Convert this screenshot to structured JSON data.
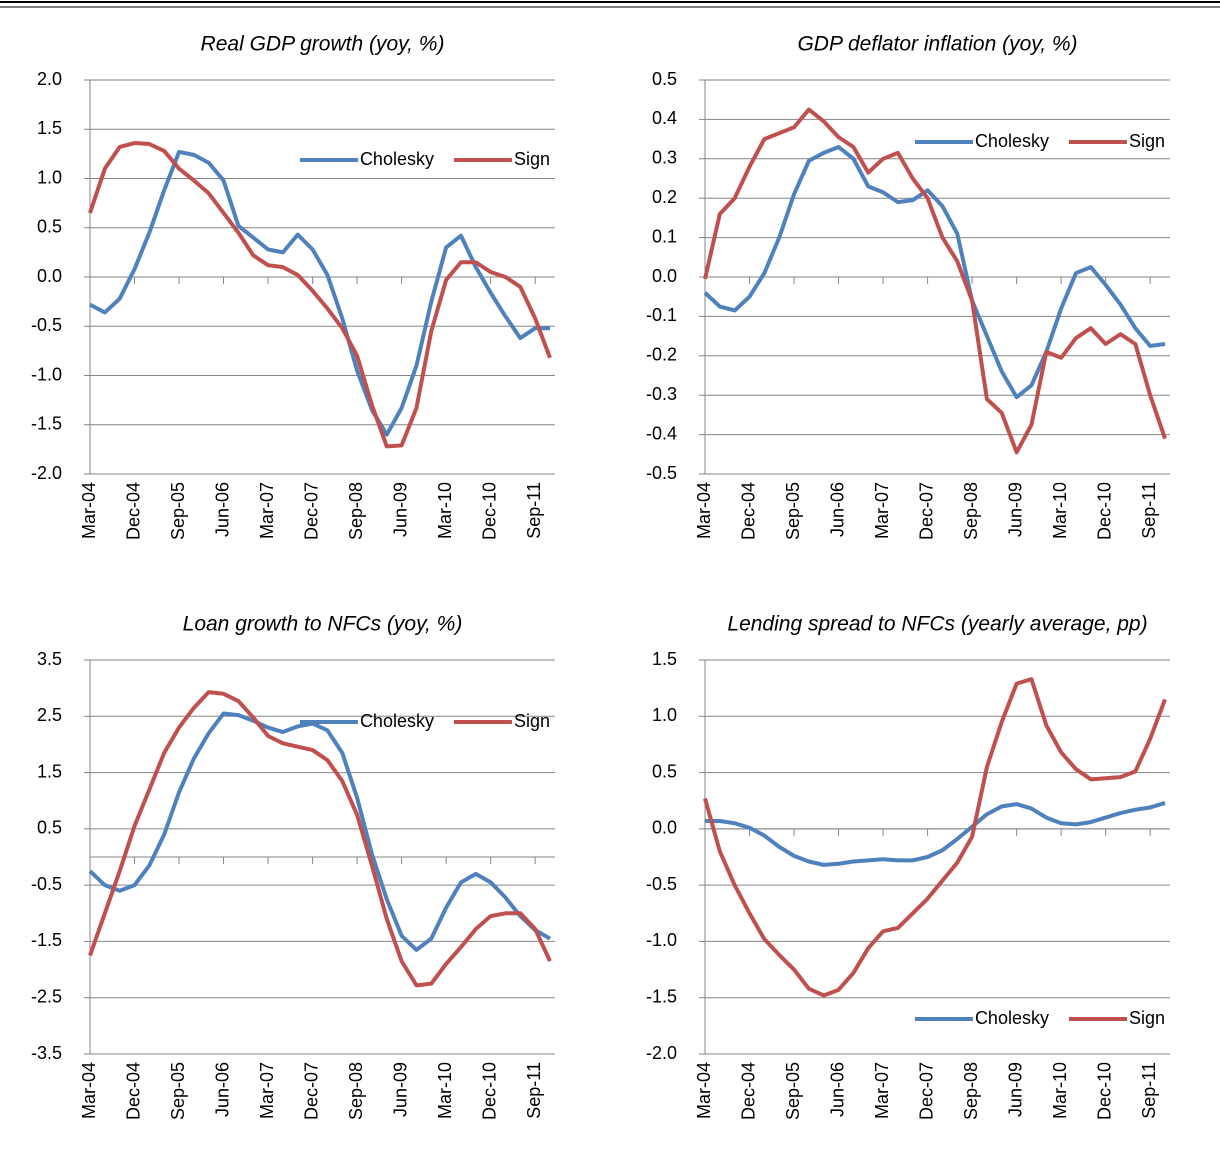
{
  "chart_data": [
    {
      "type": "line",
      "title": "Real GDP growth (yoy, %)",
      "categories": [
        "Mar-04",
        null,
        null,
        "Dec-04",
        null,
        null,
        "Sep-05",
        null,
        null,
        "Jun-06",
        null,
        null,
        "Mar-07",
        null,
        null,
        "Dec-07",
        null,
        null,
        "Sep-08",
        null,
        null,
        "Jun-09",
        null,
        null,
        "Mar-10",
        null,
        null,
        "Dec-10",
        null,
        null,
        "Sep-11",
        null
      ],
      "series": [
        {
          "name": "Cholesky",
          "color": "#4f81bd",
          "values": [
            -0.28,
            -0.36,
            -0.22,
            0.08,
            0.45,
            0.88,
            1.27,
            1.24,
            1.16,
            0.98,
            0.52,
            0.4,
            0.28,
            0.25,
            0.43,
            0.28,
            0.02,
            -0.42,
            -0.95,
            -1.35,
            -1.6,
            -1.33,
            -0.9,
            -0.25,
            0.3,
            0.42,
            0.1,
            -0.16,
            -0.4,
            -0.62,
            -0.52,
            -0.52
          ]
        },
        {
          "name": "Sign",
          "color": "#c0504d",
          "values": [
            0.65,
            1.1,
            1.32,
            1.36,
            1.35,
            1.28,
            1.1,
            0.98,
            0.85,
            0.65,
            0.45,
            0.22,
            0.12,
            0.1,
            0.02,
            -0.14,
            -0.32,
            -0.52,
            -0.8,
            -1.3,
            -1.72,
            -1.71,
            -1.33,
            -0.55,
            -0.03,
            0.15,
            0.15,
            0.05,
            0.0,
            -0.1,
            -0.42,
            -0.82
          ]
        }
      ],
      "ylim": [
        -2,
        2
      ],
      "yticks": [
        {
          "value": -2,
          "label": "-2.0"
        },
        -1.5,
        {
          "value": -1,
          "label": "-1.0"
        },
        -0.5,
        {
          "value": 0,
          "label": "0.0"
        },
        0.5,
        {
          "value": 1,
          "label": "1.0"
        },
        1.5,
        {
          "value": 2,
          "label": "2.0"
        }
      ],
      "grid": true,
      "legend_position": "top-right"
    },
    {
      "type": "line",
      "title": "GDP deflator inflation (yoy, %)",
      "categories": [
        "Mar-04",
        null,
        null,
        "Dec-04",
        null,
        null,
        "Sep-05",
        null,
        null,
        "Jun-06",
        null,
        null,
        "Mar-07",
        null,
        null,
        "Dec-07",
        null,
        null,
        "Sep-08",
        null,
        null,
        "Jun-09",
        null,
        null,
        "Mar-10",
        null,
        null,
        "Dec-10",
        null,
        null,
        "Sep-11",
        null
      ],
      "series": [
        {
          "name": "Cholesky",
          "color": "#4f81bd",
          "values": [
            -0.04,
            -0.075,
            -0.085,
            -0.05,
            0.01,
            0.1,
            0.21,
            0.295,
            0.315,
            0.33,
            0.3,
            0.23,
            0.215,
            0.19,
            0.195,
            0.22,
            0.18,
            0.11,
            -0.06,
            -0.15,
            -0.24,
            -0.305,
            -0.275,
            -0.19,
            -0.08,
            0.01,
            0.025,
            -0.02,
            -0.07,
            -0.13,
            -0.175,
            -0.17
          ]
        },
        {
          "name": "Sign",
          "color": "#c0504d",
          "values": [
            -0.005,
            0.16,
            0.2,
            0.28,
            0.35,
            0.365,
            0.38,
            0.425,
            0.395,
            0.355,
            0.33,
            0.265,
            0.3,
            0.315,
            0.25,
            0.2,
            0.1,
            0.04,
            -0.06,
            -0.31,
            -0.345,
            -0.445,
            -0.375,
            -0.19,
            -0.205,
            -0.155,
            -0.13,
            -0.17,
            -0.145,
            -0.17,
            -0.3,
            -0.41
          ]
        }
      ],
      "ylim": [
        -0.5,
        0.5
      ],
      "yticks": [
        -0.5,
        -0.4,
        -0.3,
        -0.2,
        -0.1,
        {
          "value": 0,
          "label": "0.0"
        },
        0.1,
        0.2,
        0.3,
        0.4,
        0.5
      ],
      "grid": true,
      "legend_position": "top-right"
    },
    {
      "type": "line",
      "title": "Loan growth to NFCs (yoy, %)",
      "categories": [
        "Mar-04",
        null,
        null,
        "Dec-04",
        null,
        null,
        "Sep-05",
        null,
        null,
        "Jun-06",
        null,
        null,
        "Mar-07",
        null,
        null,
        "Dec-07",
        null,
        null,
        "Sep-08",
        null,
        null,
        "Jun-09",
        null,
        null,
        "Mar-10",
        null,
        null,
        "Dec-10",
        null,
        null,
        "Sep-11",
        null
      ],
      "series": [
        {
          "name": "Cholesky",
          "color": "#4f81bd",
          "values": [
            -0.25,
            -0.5,
            -0.6,
            -0.5,
            -0.15,
            0.4,
            1.15,
            1.75,
            2.2,
            2.55,
            2.52,
            2.42,
            2.3,
            2.22,
            2.32,
            2.37,
            2.25,
            1.85,
            1.05,
            0.05,
            -0.75,
            -1.4,
            -1.65,
            -1.45,
            -0.9,
            -0.45,
            -0.3,
            -0.45,
            -0.72,
            -1.05,
            -1.3,
            -1.45
          ]
        },
        {
          "name": "Sign",
          "color": "#c0504d",
          "values": [
            -1.75,
            -1.0,
            -0.25,
            0.55,
            1.2,
            1.85,
            2.3,
            2.65,
            2.93,
            2.9,
            2.77,
            2.48,
            2.15,
            2.02,
            1.96,
            1.9,
            1.72,
            1.35,
            0.75,
            -0.15,
            -1.1,
            -1.85,
            -2.28,
            -2.25,
            -1.9,
            -1.6,
            -1.28,
            -1.05,
            -1.0,
            -1.0,
            -1.28,
            -1.85
          ]
        }
      ],
      "ylim": [
        -3.5,
        3.5
      ],
      "yticks": [
        -3.5,
        -2.5,
        -1.5,
        -0.5,
        0.5,
        1.5,
        2.5,
        3.5
      ],
      "grid": true,
      "legend_position": "top-right"
    },
    {
      "type": "line",
      "title": "Lending spread to NFCs (yearly average, pp)",
      "categories": [
        "Mar-04",
        null,
        null,
        "Dec-04",
        null,
        null,
        "Sep-05",
        null,
        null,
        "Jun-06",
        null,
        null,
        "Mar-07",
        null,
        null,
        "Dec-07",
        null,
        null,
        "Sep-08",
        null,
        null,
        "Jun-09",
        null,
        null,
        "Mar-10",
        null,
        null,
        "Dec-10",
        null,
        null,
        "Sep-11",
        null
      ],
      "series": [
        {
          "name": "Cholesky",
          "color": "#4f81bd",
          "values": [
            0.07,
            0.07,
            0.05,
            0.01,
            -0.06,
            -0.16,
            -0.24,
            -0.29,
            -0.32,
            -0.31,
            -0.29,
            -0.28,
            -0.27,
            -0.28,
            -0.28,
            -0.25,
            -0.19,
            -0.09,
            0.02,
            0.13,
            0.2,
            0.22,
            0.18,
            0.1,
            0.05,
            0.04,
            0.06,
            0.1,
            0.14,
            0.17,
            0.19,
            0.23
          ]
        },
        {
          "name": "Sign",
          "color": "#c0504d",
          "values": [
            0.27,
            -0.2,
            -0.5,
            -0.75,
            -0.98,
            -1.12,
            -1.25,
            -1.42,
            -1.48,
            -1.43,
            -1.28,
            -1.06,
            -0.91,
            -0.88,
            -0.75,
            -0.62,
            -0.46,
            -0.3,
            -0.07,
            0.55,
            0.95,
            1.29,
            1.33,
            0.92,
            0.68,
            0.53,
            0.44,
            0.45,
            0.46,
            0.51,
            0.8,
            1.15
          ]
        }
      ],
      "ylim": [
        -2,
        1.5
      ],
      "yticks": [
        {
          "value": -2,
          "label": "-2.0"
        },
        -1.5,
        {
          "value": -1,
          "label": "-1.0"
        },
        -0.5,
        {
          "value": 0,
          "label": "0.0"
        },
        0.5,
        {
          "value": 1,
          "label": "1.0"
        },
        1.5
      ],
      "grid": true,
      "legend_position": "bottom-right"
    }
  ]
}
